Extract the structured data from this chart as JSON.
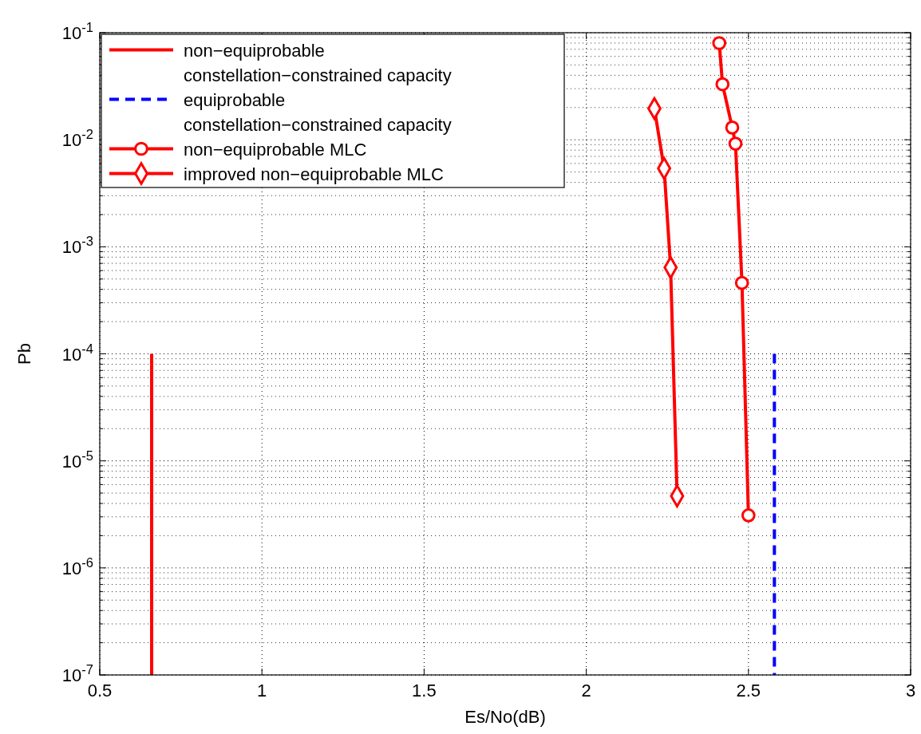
{
  "chart_data": {
    "type": "line",
    "xlabel": "Es/No(dB)",
    "ylabel": "Pb",
    "log": "y",
    "grid": true,
    "legend": "top left",
    "xlim": [
      0.5,
      3
    ],
    "xticks": [
      0.5,
      1,
      1.5,
      2,
      2.5,
      3
    ],
    "ylim": [
      1e-07,
      0.1
    ],
    "yticks": [
      {
        "value": 1e-07,
        "label": "10$^{-7}$"
      },
      {
        "value": 1e-06,
        "label": "10$^{-6}$"
      },
      {
        "value": 1e-05,
        "label": "10$^{-5}$"
      },
      {
        "value": 0.0001,
        "label": "10$^{-4}$"
      },
      {
        "value": 0.001,
        "label": "10$^{-3}$"
      },
      {
        "value": 0.01,
        "label": "10$^{-2}$"
      },
      {
        "value": 0.1,
        "label": "10$^{-1}$"
      }
    ],
    "series": [
      {
        "name": "non−equiprobable constellation−constrained capacity",
        "color": "#ff0000",
        "x": [
          0.66,
          0.66
        ],
        "values": [
          0.0001,
          1e-07
        ],
        "marker": "none",
        "line_style": "solid"
      },
      {
        "name": "equiprobable constellation−constrained capacity",
        "color": "#0000ff",
        "x": [
          2.58,
          2.58
        ],
        "values": [
          0.0001,
          1e-07
        ],
        "marker": "none",
        "line_style": "dashed"
      },
      {
        "name": "non−equiprobable MLC",
        "color": "#ff0000",
        "x": [
          2.41,
          2.42,
          2.45,
          2.46,
          2.48,
          2.5
        ],
        "values": [
          0.08,
          0.033,
          0.013,
          0.0092,
          0.00046,
          3.1e-06
        ],
        "marker": "circle",
        "line_style": "solid"
      },
      {
        "name": "improved non−equiprobable MLC",
        "color": "#ff0000",
        "x": [
          2.21,
          2.24,
          2.26,
          2.28
        ],
        "values": [
          0.0196,
          0.0054,
          0.00064,
          4.7e-06
        ],
        "marker": "diamond",
        "line_style": "solid"
      }
    ]
  }
}
